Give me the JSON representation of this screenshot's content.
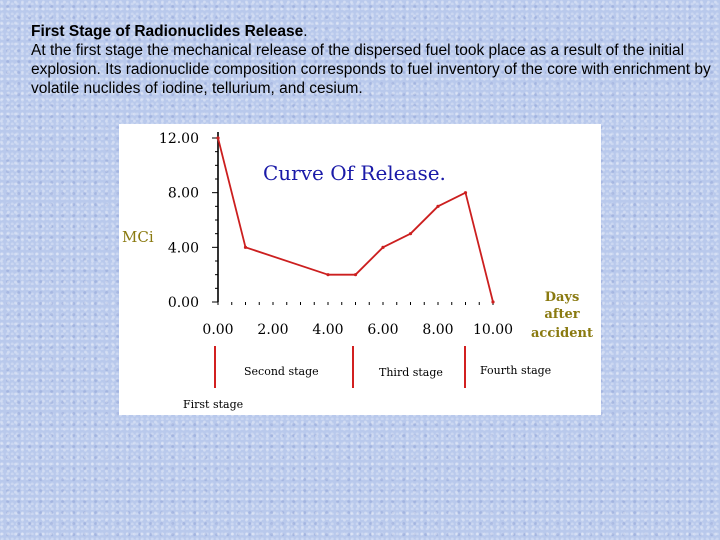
{
  "slide": {
    "title": "First Stage of Radionuclides Release",
    "title_suffix": ".",
    "body": "At the first stage the mechanical release of the dispersed fuel took place as a result of the initial explosion. Its radionuclide composition corresponds to fuel inventory of the core with enrichment by volatile nuclides of iodine, tellurium, and cesium."
  },
  "chart_data": {
    "type": "line",
    "title": "Curve Of Release.",
    "ylabel": "MCi",
    "xlabel_lines": [
      "Days",
      "after",
      "accident"
    ],
    "x_ticks": [
      "0.00",
      "2.00",
      "4.00",
      "6.00",
      "8.00",
      "10.00"
    ],
    "y_ticks": [
      "0.00",
      "4.00",
      "8.00",
      "12.00"
    ],
    "xlim": [
      0,
      10
    ],
    "ylim": [
      0,
      12
    ],
    "grid": false,
    "series": [
      {
        "x": [
          0,
          1,
          4,
          5,
          6,
          7,
          8,
          9,
          10
        ],
        "y": [
          12,
          4,
          2,
          2,
          4,
          5,
          7,
          8,
          0
        ]
      }
    ],
    "stage_labels": [
      "First stage",
      "Second stage",
      "Third stage",
      "Fourth stage"
    ],
    "colors": {
      "line": "#cc1f1f",
      "title": "#1a1aa8",
      "axis": "#000000",
      "accent_text": "#8a7a10",
      "stage_marker": "#d22020"
    }
  }
}
